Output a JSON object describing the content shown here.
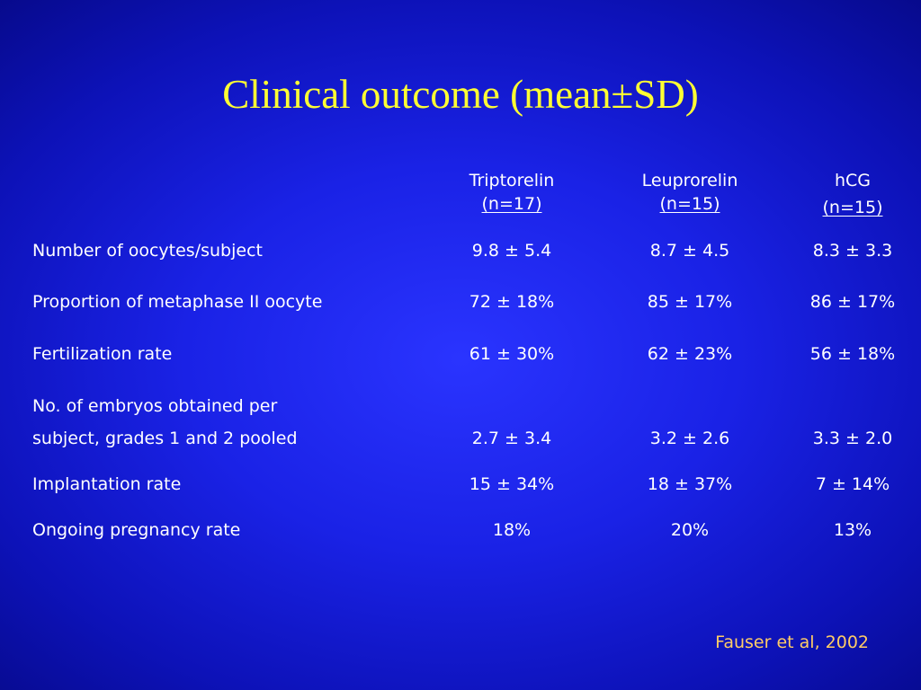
{
  "slide": {
    "title": "Clinical outcome (mean±SD)",
    "citation": "Fauser et al, 2002"
  },
  "table": {
    "columns": [
      {
        "name": "Triptorelin",
        "n": "(n=17)"
      },
      {
        "name": "Leuprorelin",
        "n": "(n=15)"
      },
      {
        "name": "hCG",
        "n": "(n=15)"
      }
    ],
    "rows": [
      {
        "label_lines": [
          "Number of oocytes/subject"
        ],
        "values": [
          "9.8 ± 5.4",
          "8.7 ± 4.5",
          "8.3 ± 3.3"
        ]
      },
      {
        "label_lines": [
          "Proportion of metaphase II oocyte"
        ],
        "values": [
          "72 ± 18%",
          "85 ± 17%",
          "86 ± 17%"
        ]
      },
      {
        "label_lines": [
          "Fertilization rate"
        ],
        "values": [
          "61 ± 30%",
          "62 ± 23%",
          "56 ± 18%"
        ]
      },
      {
        "label_lines": [
          "No. of embryos obtained per",
          "subject, grades 1 and 2 pooled"
        ],
        "values": [
          "2.7 ± 3.4",
          "3.2 ± 2.6",
          "3.3 ± 2.0"
        ]
      },
      {
        "label_lines": [
          "Implantation rate"
        ],
        "values": [
          "15 ± 34%",
          "18 ± 37%",
          "7 ± 14%"
        ]
      },
      {
        "label_lines": [
          "Ongoing pregnancy rate"
        ],
        "values": [
          "18%",
          "20%",
          "13%"
        ]
      }
    ]
  }
}
